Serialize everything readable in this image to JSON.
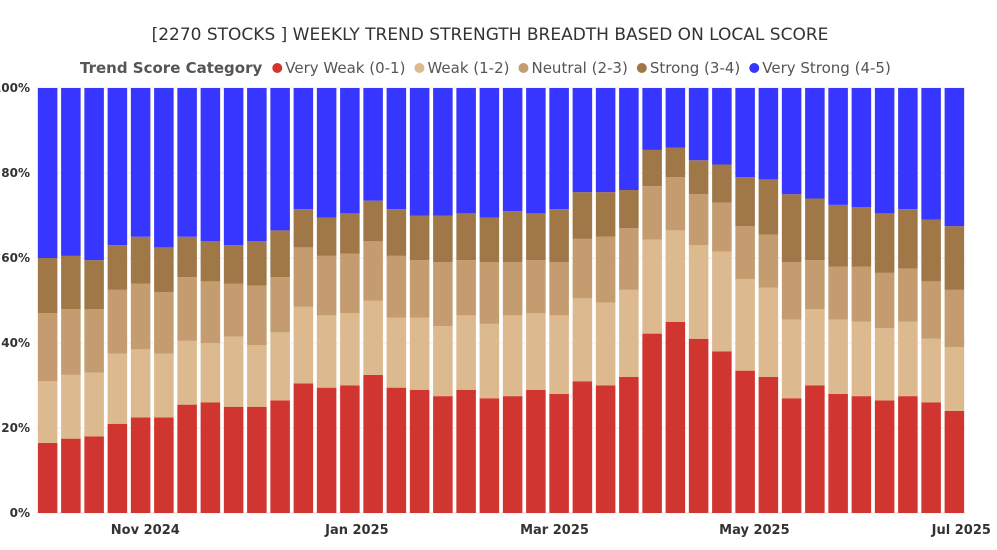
{
  "chart_data": {
    "type": "bar",
    "stacked": true,
    "normalized": true,
    "title": "[2270 STOCKS ] WEEKLY TREND STRENGTH BREADTH BASED ON LOCAL SCORE",
    "legend_title": "Trend Score Category",
    "xlabel": "",
    "ylabel": "",
    "ylim": [
      0,
      100
    ],
    "y_ticks": [
      "0%",
      "20%",
      "40%",
      "60%",
      "80%",
      "100%"
    ],
    "x_tick_labels": [
      {
        "label": "Nov 2024",
        "index": 4.2
      },
      {
        "label": "Jan 2025",
        "index": 13.3
      },
      {
        "label": "Mar 2025",
        "index": 21.8
      },
      {
        "label": "May 2025",
        "index": 30.4
      },
      {
        "label": "Jul 2025",
        "index": 39.3
      }
    ],
    "series": [
      {
        "name": "Very Weak (0-1)",
        "color": "#d13530",
        "values": [
          16.5,
          17.5,
          18,
          21,
          22.5,
          22.5,
          25.5,
          26,
          25,
          25,
          26.5,
          30.5,
          29.5,
          30,
          32.5,
          29.5,
          29,
          27.5,
          29,
          27,
          27.5,
          29,
          28,
          31,
          30,
          32,
          42,
          45,
          41,
          38,
          33.5,
          32,
          27,
          30,
          28,
          27.5,
          26.5,
          27.5,
          26,
          24
        ]
      },
      {
        "name": "Weak (1-2)",
        "color": "#dcb98e",
        "values": [
          14.5,
          15,
          15,
          16.5,
          16,
          15,
          15,
          14,
          16.5,
          14.5,
          16,
          18,
          17,
          17,
          17.5,
          16.5,
          17,
          16.5,
          17.5,
          17.5,
          19,
          18,
          18.5,
          19.5,
          19.5,
          20.5,
          22,
          21.5,
          22,
          23.5,
          21.5,
          21,
          18.5,
          18,
          17.5,
          17.5,
          17,
          17.5,
          15,
          15
        ]
      },
      {
        "name": "Neutral (2-3)",
        "color": "#c49c70",
        "values": [
          16,
          15.5,
          15,
          15,
          15.5,
          14.5,
          15,
          14.5,
          12.5,
          14,
          13,
          14,
          14,
          14,
          14,
          14.5,
          13.5,
          15,
          13,
          14.5,
          12.5,
          12.5,
          12.5,
          14,
          15.5,
          14.5,
          12.5,
          12.5,
          12,
          11.5,
          12.5,
          12.5,
          13.5,
          11.5,
          12.5,
          13,
          13,
          12.5,
          13.5,
          13.5
        ]
      },
      {
        "name": "Strong (3-4)",
        "color": "#a07848",
        "values": [
          13,
          12.5,
          11.5,
          10.5,
          11,
          10.5,
          9.5,
          9.5,
          9,
          10.5,
          11,
          9,
          9,
          9.5,
          9.5,
          11,
          10.5,
          11,
          11,
          10.5,
          12,
          11,
          12.5,
          11,
          10.5,
          9,
          8.5,
          7,
          8,
          9,
          11.5,
          13,
          16,
          14.5,
          14.5,
          14,
          14,
          14,
          14.5,
          15
        ]
      },
      {
        "name": "Very Strong (4-5)",
        "color": "#3636ff",
        "values": [
          40,
          39.5,
          40.5,
          37,
          35,
          37.5,
          35,
          36,
          37,
          36,
          33.5,
          28.5,
          30.5,
          29.5,
          26.5,
          28.5,
          30,
          30,
          29.5,
          30.5,
          29,
          29.5,
          28.5,
          24.5,
          24.5,
          24,
          14.5,
          14,
          17,
          18,
          21,
          21.5,
          25,
          26,
          27.5,
          28,
          29.5,
          28.5,
          31,
          32.5
        ]
      }
    ]
  }
}
